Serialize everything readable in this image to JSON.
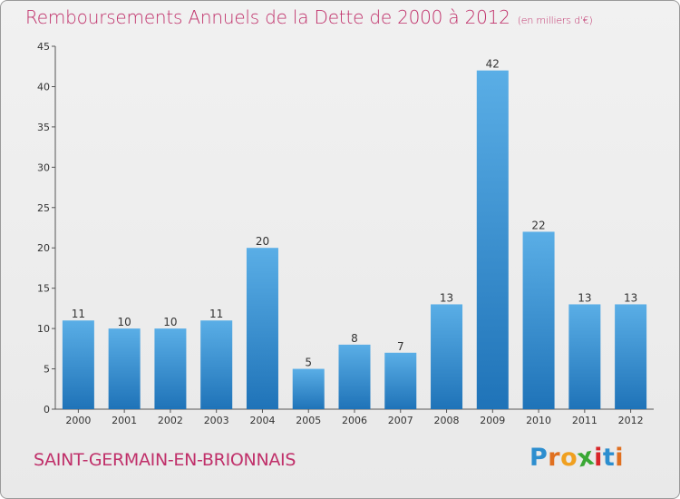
{
  "title": "Remboursements Annuels de la Dette de 2000 à 2012",
  "subtitle": "(en milliers d'€)",
  "commune": "SAINT-GERMAIN-EN-BRIONNAIS",
  "logo": {
    "letters": [
      "P",
      "r",
      "o",
      "x",
      "i",
      "t",
      "i"
    ],
    "colors": [
      "#2d8ecf",
      "#e07020",
      "#f0a020",
      "#3aa835",
      "#d8262a",
      "#2d8ecf",
      "#e07020"
    ]
  },
  "colors": {
    "bar_top": "#5aaee6",
    "bar_bottom": "#1f73b8",
    "title": "#c0306a"
  },
  "chart_data": {
    "type": "bar",
    "categories": [
      "2000",
      "2001",
      "2002",
      "2003",
      "2004",
      "2005",
      "2006",
      "2007",
      "2008",
      "2009",
      "2010",
      "2011",
      "2012"
    ],
    "values": [
      11,
      10,
      10,
      11,
      20,
      5,
      8,
      7,
      13,
      42,
      22,
      13,
      13
    ],
    "title": "Remboursements Annuels de la Dette de 2000 à 2012",
    "ylim": [
      0,
      45
    ],
    "yticks": [
      0,
      5,
      10,
      15,
      20,
      25,
      30,
      35,
      40,
      45
    ],
    "grid": false
  }
}
